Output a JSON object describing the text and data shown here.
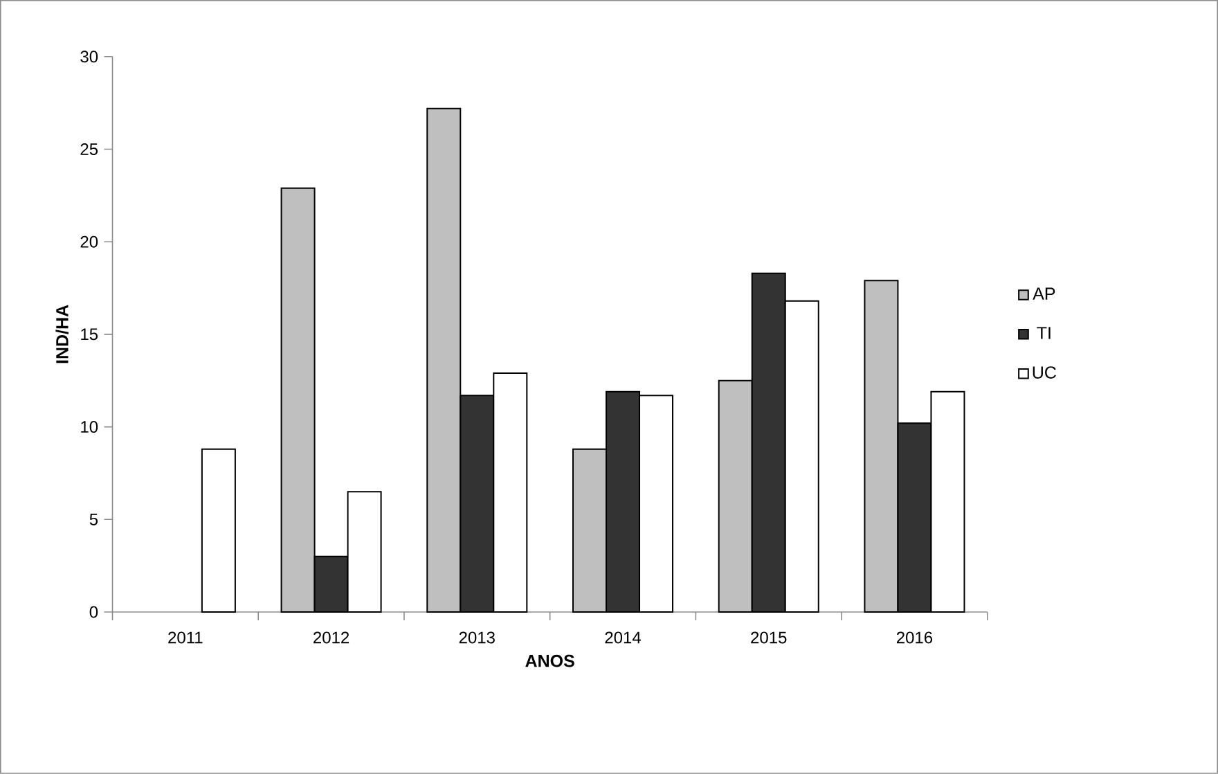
{
  "chart_data": {
    "type": "bar",
    "xlabel": "ANOS",
    "ylabel": "IND/HA",
    "categories": [
      "2011",
      "2012",
      "2013",
      "2014",
      "2015",
      "2016"
    ],
    "series": [
      {
        "name": "AP",
        "color": "#bfbfbf",
        "values": [
          null,
          22.9,
          27.2,
          8.8,
          12.5,
          17.9
        ]
      },
      {
        "name": "TI",
        "color": "#333333",
        "values": [
          null,
          3.0,
          11.7,
          11.9,
          18.3,
          10.2
        ]
      },
      {
        "name": "UC",
        "color": "#ffffff",
        "values": [
          8.8,
          6.5,
          12.9,
          11.7,
          16.8,
          11.9
        ]
      }
    ],
    "ylim": [
      0,
      30
    ],
    "yticks": [
      0,
      5,
      10,
      15,
      20,
      25,
      30
    ],
    "grid": false,
    "legend": "right"
  }
}
